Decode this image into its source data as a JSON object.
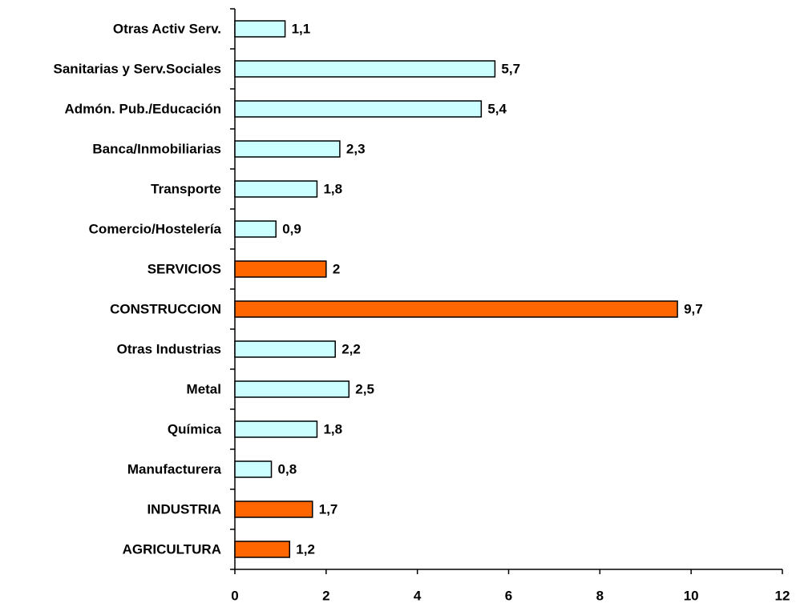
{
  "chart_data": {
    "type": "barh",
    "categories": [
      "Otras Activ Serv.",
      "Sanitarias y Serv.Sociales",
      "Admón. Pub./Educación",
      "Banca/Inmobiliarias",
      "Transporte",
      "Comercio/Hostelería",
      "SERVICIOS",
      "CONSTRUCCION",
      "Otras Industrias",
      "Metal",
      "Química",
      "Manufacturera",
      "INDUSTRIA",
      "AGRICULTURA"
    ],
    "values": [
      1.1,
      5.7,
      5.4,
      2.3,
      1.8,
      0.9,
      2,
      9.7,
      2.2,
      2.5,
      1.8,
      0.8,
      1.7,
      1.2
    ],
    "value_labels": [
      "1,1",
      "5,7",
      "5,4",
      "2,3",
      "1,8",
      "0,9",
      "2",
      "9,7",
      "2,2",
      "2,5",
      "1,8",
      "0,8",
      "1,7",
      "1,2"
    ],
    "colors": [
      "#ccffff",
      "#ccffff",
      "#ccffff",
      "#ccffff",
      "#ccffff",
      "#ccffff",
      "#ff6600",
      "#ff6600",
      "#ccffff",
      "#ccffff",
      "#ccffff",
      "#ccffff",
      "#ff6600",
      "#ff6600"
    ],
    "xlim": [
      0,
      12
    ],
    "xticks": [
      0,
      2,
      4,
      6,
      8,
      10,
      12
    ]
  }
}
